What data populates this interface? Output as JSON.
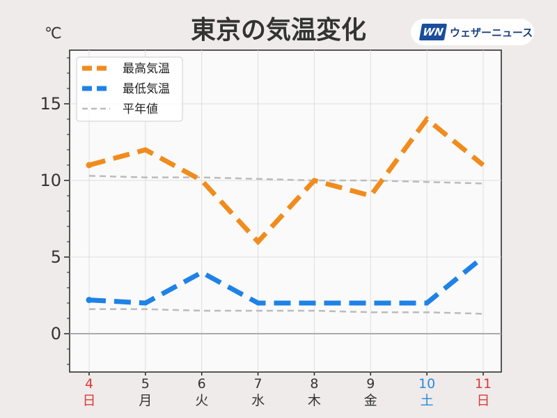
{
  "title": "東京の気温変化",
  "brand": {
    "mark": "WN",
    "name": "ウェザーニュース",
    "color": "#1a4d9c"
  },
  "colors": {
    "high": "#f08c1e",
    "low": "#1e82e6",
    "normal": "#bbbbbb",
    "weekday": "#333333",
    "sunday_holiday": "#d93a3a",
    "saturday": "#2a8ad8"
  },
  "chart_data": {
    "type": "line",
    "unit": "℃",
    "ylim": [
      -2.5,
      18.5
    ],
    "yticks": [
      0,
      5,
      10,
      15
    ],
    "grid": true,
    "legend_position": "top-left",
    "x": [
      {
        "date": "4",
        "weekday": "日",
        "kind": "sunday"
      },
      {
        "date": "5",
        "weekday": "月",
        "kind": "weekday"
      },
      {
        "date": "6",
        "weekday": "火",
        "kind": "weekday"
      },
      {
        "date": "7",
        "weekday": "水",
        "kind": "weekday"
      },
      {
        "date": "8",
        "weekday": "木",
        "kind": "weekday"
      },
      {
        "date": "9",
        "weekday": "金",
        "kind": "weekday"
      },
      {
        "date": "10",
        "weekday": "土",
        "kind": "saturday"
      },
      {
        "date": "11",
        "weekday": "日",
        "kind": "sunday"
      }
    ],
    "series": [
      {
        "name": "最高気温",
        "style": "high",
        "values": [
          11,
          12,
          10,
          6,
          10,
          9,
          14,
          11
        ]
      },
      {
        "name": "最低気温",
        "style": "low",
        "values": [
          2.2,
          2,
          4,
          2,
          2,
          2,
          2,
          5
        ]
      },
      {
        "name": "平年値",
        "style": "normal-high",
        "values": [
          10.3,
          10.2,
          10.2,
          10.1,
          10.0,
          10.0,
          9.9,
          9.8
        ]
      },
      {
        "name": "",
        "style": "normal-low",
        "values": [
          1.6,
          1.6,
          1.5,
          1.5,
          1.5,
          1.4,
          1.4,
          1.3
        ]
      }
    ],
    "legend": [
      "最高気温",
      "最低気温",
      "平年値"
    ]
  }
}
